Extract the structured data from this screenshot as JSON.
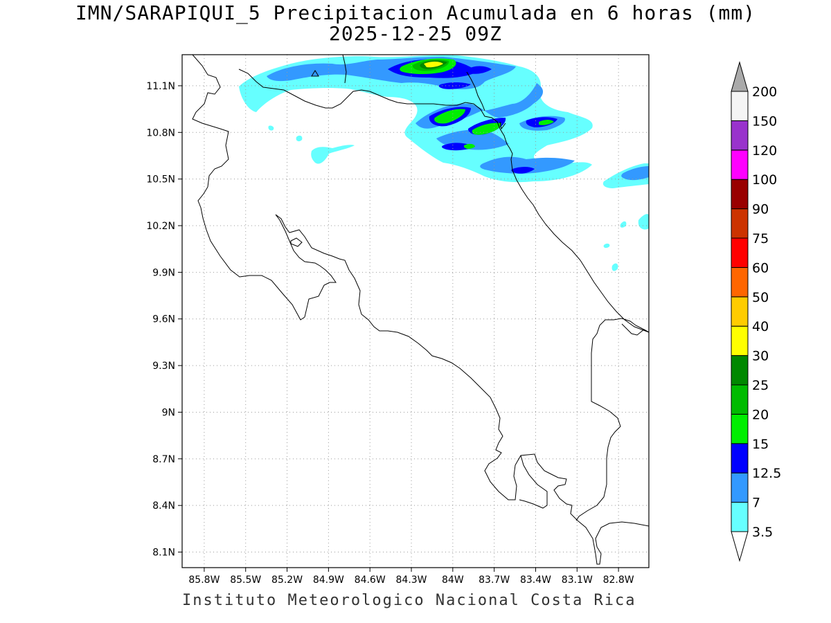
{
  "title": {
    "line1": "IMN/SARAPIQUI_5 Precipitacion Acumulada en 6 horas (mm)",
    "line2": "2025-12-25 09Z"
  },
  "footer": "Instituto Meteorologico Nacional Costa Rica",
  "axes": {
    "x_ticks": [
      "85.8W",
      "85.5W",
      "85.2W",
      "84.9W",
      "84.6W",
      "84.3W",
      "84W",
      "83.7W",
      "83.4W",
      "83.1W",
      "82.8W"
    ],
    "y_ticks": [
      "11.1N",
      "10.8N",
      "10.5N",
      "10.2N",
      "9.9N",
      "9.6N",
      "9.3N",
      "9N",
      "8.7N",
      "8.4N",
      "8.1N"
    ],
    "lon_range": [
      -85.96,
      -82.58
    ],
    "lat_range": [
      8.0,
      11.3
    ],
    "grid": "dotted"
  },
  "colorbar": {
    "levels": [
      "3.5",
      "7",
      "12.5",
      "15",
      "20",
      "25",
      "30",
      "40",
      "50",
      "60",
      "75",
      "90",
      "100",
      "120",
      "150",
      "200"
    ],
    "colors": [
      "#66ffff",
      "#3399ff",
      "#0000ff",
      "#00ee00",
      "#00bb00",
      "#008800",
      "#ffff00",
      "#ffcc00",
      "#ff6600",
      "#ff0000",
      "#cc3300",
      "#990000",
      "#ff00ff",
      "#9933cc",
      "#f5f5f5",
      "#aaaaaa"
    ]
  }
}
